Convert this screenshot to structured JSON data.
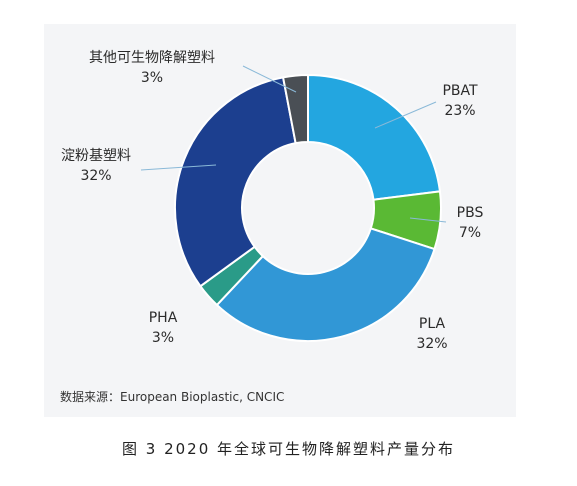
{
  "chart_data": {
    "type": "pie",
    "donut": true,
    "slices": [
      {
        "label": "PBAT",
        "percent_label": "23%",
        "value": 23,
        "color": "#23a6e0"
      },
      {
        "label": "PBS",
        "percent_label": "7%",
        "value": 7,
        "color": "#5ab934"
      },
      {
        "label": "PLA",
        "percent_label": "32%",
        "value": 32,
        "color": "#3197d6"
      },
      {
        "label": "PHA",
        "percent_label": "3%",
        "value": 3,
        "color": "#2a9b88"
      },
      {
        "label": "淀粉基塑料",
        "percent_label": "32%",
        "value": 32,
        "color": "#1c3f8f"
      },
      {
        "label": "其他可生物降解塑料",
        "percent_label": "3%",
        "value": 3,
        "color": "#4a4f55"
      }
    ]
  },
  "source": "数据来源：European Bioplastic, CNCIC",
  "caption": "图 3  2020 年全球可生物降解塑料产量分布"
}
